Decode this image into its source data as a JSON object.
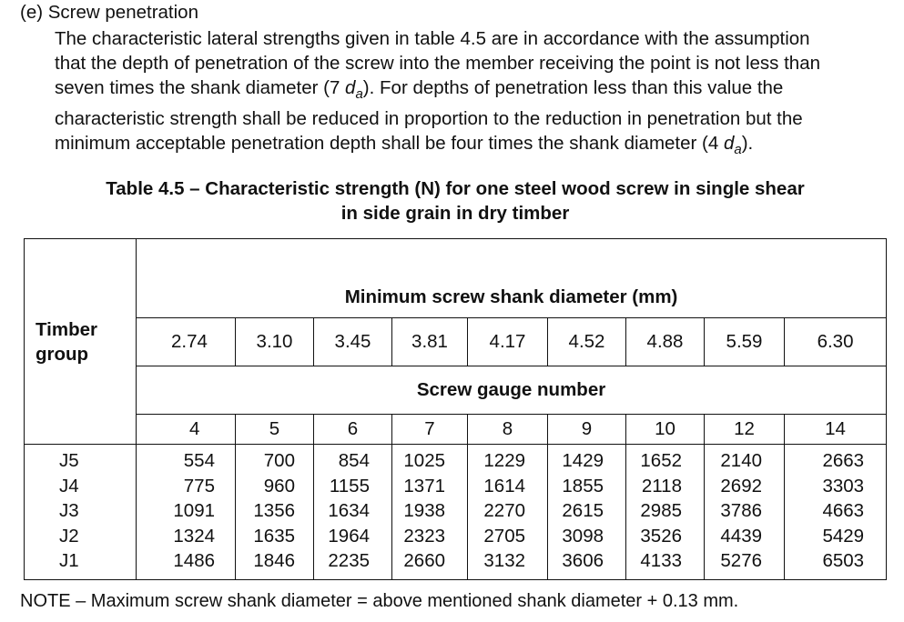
{
  "section": {
    "heading": "(e) Screw penetration",
    "paragraph_lines": [
      "The characteristic lateral strengths given in table 4.5 are in accordance with the assumption",
      "that the depth of penetration of the screw into the member receiving the point is not less than",
      "seven times the shank diameter (7 ",
      "). For depths of penetration less than this value the",
      "characteristic strength shall be reduced in proportion to the reduction in penetration but the",
      "minimum acceptable penetration depth shall be four times the shank diameter (4 ",
      ")."
    ],
    "symbol": "d",
    "symbol_sub": "a"
  },
  "table": {
    "caption_lines": [
      "Table 4.5 – Characteristic strength (N) for one steel wood screw in single shear",
      "in side grain in dry timber"
    ],
    "timber_group_label_lines": [
      "Timber",
      "group"
    ],
    "diameter_header": "Minimum screw shank diameter (mm)",
    "diameters": [
      "2.74",
      "3.10",
      "3.45",
      "3.81",
      "4.17",
      "4.52",
      "4.88",
      "5.59",
      "6.30"
    ],
    "gauge_header": "Screw gauge number",
    "gauges": [
      "4",
      "5",
      "6",
      "7",
      "8",
      "9",
      "10",
      "12",
      "14"
    ],
    "groups": [
      "J5",
      "J4",
      "J3",
      "J2",
      "J1"
    ],
    "rows": [
      [
        "554",
        "700",
        "854",
        "1025",
        "1229",
        "1429",
        "1652",
        "2140",
        "2663"
      ],
      [
        "775",
        "960",
        "1155",
        "1371",
        "1614",
        "1855",
        "2118",
        "2692",
        "3303"
      ],
      [
        "1091",
        "1356",
        "1634",
        "1938",
        "2270",
        "2615",
        "2985",
        "3786",
        "4663"
      ],
      [
        "1324",
        "1635",
        "1964",
        "2323",
        "2705",
        "3098",
        "3526",
        "4439",
        "5429"
      ],
      [
        "1486",
        "1846",
        "2235",
        "2660",
        "3132",
        "3606",
        "4133",
        "5276",
        "6503"
      ]
    ]
  },
  "note": "NOTE – Maximum screw shank diameter = above mentioned shank diameter + 0.13 mm."
}
